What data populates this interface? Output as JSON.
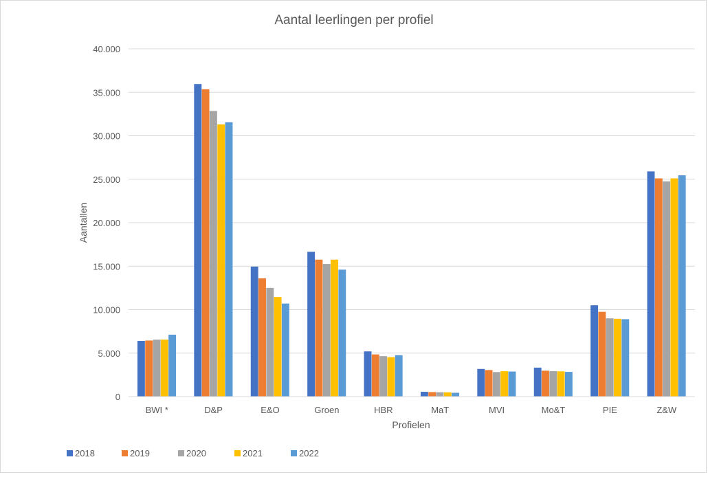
{
  "chart_data": {
    "type": "bar",
    "title": "Aantal leerlingen per profiel",
    "xlabel": "Profielen",
    "ylabel": "Aantallen",
    "ylim": [
      0,
      40000
    ],
    "yticks": [
      0,
      5000,
      10000,
      15000,
      20000,
      25000,
      30000,
      35000,
      40000
    ],
    "ytick_labels": [
      "0",
      "5.000",
      "10.000",
      "15.000",
      "20.000",
      "25.000",
      "30.000",
      "35.000",
      "40.000"
    ],
    "grid": true,
    "legend_position": "bottom-left",
    "categories": [
      "BWI *",
      "D&P",
      "E&O",
      "Groen",
      "HBR",
      "MaT",
      "MVI",
      "Mo&T",
      "PIE",
      "Z&W"
    ],
    "series": [
      {
        "name": "2018",
        "color": "#4472c4",
        "values": [
          6400,
          35950,
          14950,
          16650,
          5200,
          550,
          3180,
          3330,
          10500,
          25900
        ]
      },
      {
        "name": "2019",
        "color": "#ed7d31",
        "values": [
          6450,
          35350,
          13600,
          15750,
          4850,
          520,
          3050,
          2980,
          9750,
          25100
        ]
      },
      {
        "name": "2020",
        "color": "#a5a5a5",
        "values": [
          6550,
          32850,
          12500,
          15250,
          4650,
          500,
          2820,
          2920,
          9000,
          24750
        ]
      },
      {
        "name": "2021",
        "color": "#ffc000",
        "values": [
          6550,
          31300,
          11450,
          15750,
          4530,
          490,
          2920,
          2900,
          8950,
          25100
        ]
      },
      {
        "name": "2022",
        "color": "#5b9bd5",
        "values": [
          7120,
          31550,
          10700,
          14600,
          4760,
          440,
          2880,
          2840,
          8900,
          25450
        ]
      }
    ]
  }
}
